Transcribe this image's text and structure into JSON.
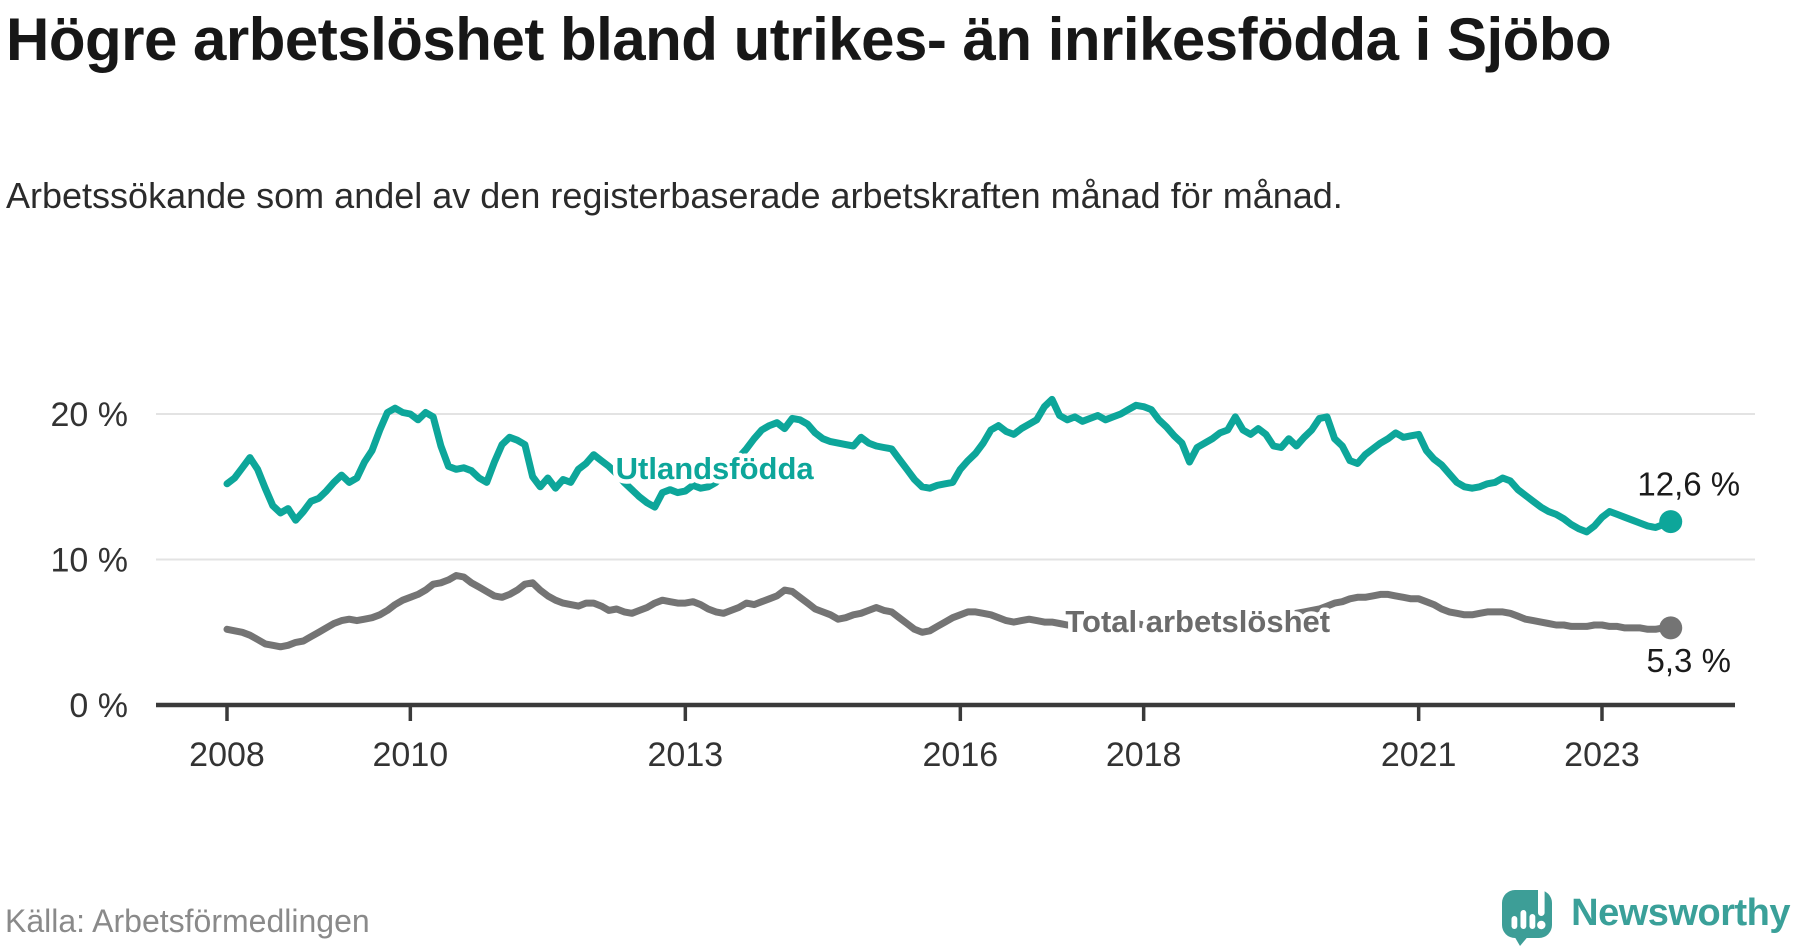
{
  "header": {
    "title": "Högre arbetslöshet bland utrikes- än inrikesfödda i Sjöbo",
    "subtitle": "Arbetssökande som andel av den registerbaserade arbetskraften månad för månad."
  },
  "footer": {
    "source": "Källa: Arbetsförmedlingen",
    "brand_name": "Newsworthy",
    "brand_icon": "speech-bubble-bar-chart-icon"
  },
  "colors": {
    "accent_teal": "#0da69a",
    "line_gray": "#747474",
    "gray_label": "#6b6b6b",
    "axis": "#3a3a3a",
    "gridline": "#e3e3e3",
    "text_dark": "#171717",
    "value_label": "#1b1b1b",
    "brand_teal": "#3aa099",
    "source_gray": "#8a8a8a"
  },
  "chart_data": {
    "type": "line",
    "title": "Högre arbetslöshet bland utrikes- än inrikesfödda i Sjöbo",
    "subtitle": "Arbetssökande som andel av den registerbaserade arbetskraften månad för månad.",
    "x_unit": "month",
    "x_start_year": 2008,
    "x_end": "2023-10",
    "x_ticks": [
      2008,
      2010,
      2013,
      2016,
      2018,
      2021,
      2023
    ],
    "y_ticks": [
      {
        "value": 0,
        "label": "0 %"
      },
      {
        "value": 10,
        "label": "10 %"
      },
      {
        "value": 20,
        "label": "20 %"
      }
    ],
    "ylim": [
      0,
      22.3
    ],
    "grid": "horizontal",
    "legend_position": "inline-on-line",
    "series": [
      {
        "name": "Utlandsfödda",
        "color": "#0da69a",
        "end_label": "12,6 %",
        "end_value": 12.6,
        "label_anchor": {
          "x_year": 2013.32,
          "y_pct": 16.3
        },
        "values": [
          15.2,
          15.6,
          16.3,
          17.0,
          16.2,
          14.9,
          13.7,
          13.2,
          13.5,
          12.7,
          13.3,
          14.0,
          14.2,
          14.7,
          15.3,
          15.8,
          15.3,
          15.6,
          16.7,
          17.5,
          18.9,
          20.1,
          20.4,
          20.1,
          20.0,
          19.6,
          20.1,
          19.8,
          17.8,
          16.4,
          16.2,
          16.3,
          16.1,
          15.6,
          15.3,
          16.7,
          17.9,
          18.4,
          18.2,
          17.9,
          15.7,
          15.0,
          15.6,
          14.9,
          15.5,
          15.3,
          16.2,
          16.6,
          17.2,
          16.8,
          16.4,
          15.9,
          15.3,
          14.8,
          14.3,
          13.9,
          13.6,
          14.6,
          14.8,
          14.6,
          14.7,
          15.1,
          14.9,
          15.0,
          15.3,
          15.8,
          16.4,
          17.0,
          17.6,
          18.3,
          18.9,
          19.2,
          19.4,
          19.0,
          19.7,
          19.6,
          19.3,
          18.7,
          18.3,
          18.1,
          18.0,
          17.9,
          17.8,
          18.4,
          18.0,
          17.8,
          17.7,
          17.6,
          16.9,
          16.2,
          15.5,
          15.0,
          14.9,
          15.1,
          15.2,
          15.3,
          16.2,
          16.8,
          17.3,
          18.0,
          18.9,
          19.2,
          18.8,
          18.6,
          19.0,
          19.3,
          19.6,
          20.5,
          21.0,
          19.9,
          19.6,
          19.8,
          19.5,
          19.7,
          19.9,
          19.6,
          19.8,
          20.0,
          20.3,
          20.6,
          20.5,
          20.3,
          19.6,
          19.1,
          18.5,
          18.0,
          16.7,
          17.7,
          18.0,
          18.3,
          18.7,
          18.9,
          19.8,
          18.9,
          18.6,
          19.0,
          18.6,
          17.8,
          17.7,
          18.3,
          17.8,
          18.4,
          18.9,
          19.7,
          19.8,
          18.3,
          17.8,
          16.8,
          16.6,
          17.2,
          17.6,
          18.0,
          18.3,
          18.7,
          18.4,
          18.5,
          18.6,
          17.5,
          16.9,
          16.5,
          15.9,
          15.3,
          15.0,
          14.9,
          15.0,
          15.2,
          15.3,
          15.6,
          15.4,
          14.8,
          14.4,
          14.0,
          13.6,
          13.3,
          13.1,
          12.8,
          12.4,
          12.1,
          11.9,
          12.3,
          12.9,
          13.3,
          13.1,
          12.9,
          12.7,
          12.5,
          12.3,
          12.2,
          12.4,
          12.6
        ]
      },
      {
        "name": "Total arbetslöshet",
        "color": "#747474",
        "end_label": "5,3 %",
        "end_value": 5.3,
        "label_anchor": {
          "x_year": 2018.59,
          "y_pct": 5.77
        },
        "values": [
          5.2,
          5.1,
          5.0,
          4.8,
          4.5,
          4.2,
          4.1,
          4.0,
          4.1,
          4.3,
          4.4,
          4.7,
          5.0,
          5.3,
          5.6,
          5.8,
          5.9,
          5.8,
          5.9,
          6.0,
          6.2,
          6.5,
          6.9,
          7.2,
          7.4,
          7.6,
          7.9,
          8.3,
          8.4,
          8.6,
          8.9,
          8.8,
          8.4,
          8.1,
          7.8,
          7.5,
          7.4,
          7.6,
          7.9,
          8.3,
          8.4,
          7.9,
          7.5,
          7.2,
          7.0,
          6.9,
          6.8,
          7.0,
          7.0,
          6.8,
          6.5,
          6.6,
          6.4,
          6.3,
          6.5,
          6.7,
          7.0,
          7.2,
          7.1,
          7.0,
          7.0,
          7.1,
          6.9,
          6.6,
          6.4,
          6.3,
          6.5,
          6.7,
          7.0,
          6.9,
          7.1,
          7.3,
          7.5,
          7.9,
          7.8,
          7.4,
          7.0,
          6.6,
          6.4,
          6.2,
          5.9,
          6.0,
          6.2,
          6.3,
          6.5,
          6.7,
          6.5,
          6.4,
          6.0,
          5.6,
          5.2,
          5.0,
          5.1,
          5.4,
          5.7,
          6.0,
          6.2,
          6.4,
          6.4,
          6.3,
          6.2,
          6.0,
          5.8,
          5.7,
          5.8,
          5.9,
          5.8,
          5.7,
          5.7,
          5.6,
          5.5,
          5.5,
          5.4,
          5.5,
          5.6,
          5.5,
          5.4,
          5.5,
          5.6,
          5.6,
          5.5,
          5.4,
          5.3,
          5.2,
          5.2,
          5.3,
          5.2,
          5.3,
          5.4,
          5.5,
          5.5,
          5.6,
          5.7,
          5.8,
          5.9,
          6.0,
          5.9,
          6.0,
          6.1,
          6.2,
          6.3,
          6.4,
          6.5,
          6.6,
          6.8,
          7.0,
          7.1,
          7.3,
          7.4,
          7.4,
          7.5,
          7.6,
          7.6,
          7.5,
          7.4,
          7.3,
          7.3,
          7.1,
          6.9,
          6.6,
          6.4,
          6.3,
          6.2,
          6.2,
          6.3,
          6.4,
          6.4,
          6.4,
          6.3,
          6.1,
          5.9,
          5.8,
          5.7,
          5.6,
          5.5,
          5.5,
          5.4,
          5.4,
          5.4,
          5.5,
          5.5,
          5.4,
          5.4,
          5.3,
          5.3,
          5.3,
          5.2,
          5.2,
          5.3,
          5.3
        ]
      }
    ]
  }
}
